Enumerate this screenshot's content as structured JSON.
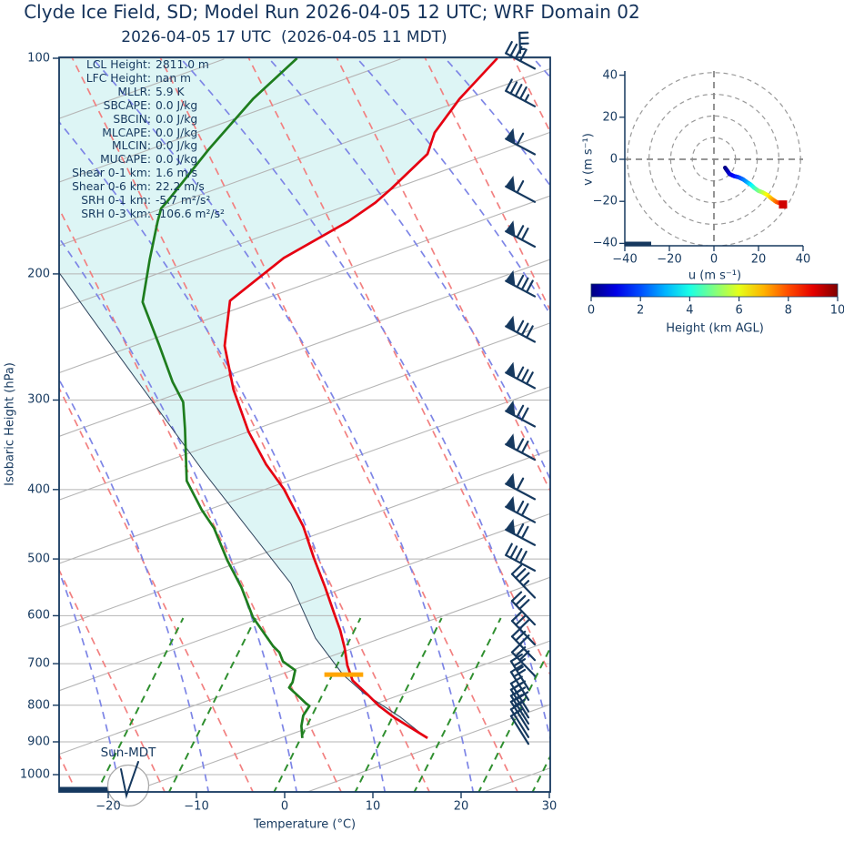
{
  "title": "Clyde Ice Field, SD; Model Run 2026-04-05 12 UTC; WRF Domain 02",
  "subtitle": "2026-04-05 17 UTC  (2026-04-05 11 MDT)",
  "colors": {
    "navy": "#16395f",
    "temperature_line": "#e60011",
    "dewpoint_line": "#1e7d1e",
    "parcel_line": "#30455e",
    "cin_shade": "#ddf5f5",
    "isotherm": "#b5b5b5",
    "dry_adiabat": "#f28080",
    "moist_adiabat": "#7d85e6",
    "mixing_ratio": "#2f8f2f",
    "lcl_marker": "#ffa500",
    "hodo_ring": "#999999",
    "hodo_cross": "#888888",
    "endpoint_marker": "#d00000"
  },
  "stats": {
    "rows": [
      {
        "label": "LCL Height:",
        "value": "2811.0 m"
      },
      {
        "label": "LFC Height:",
        "value": "nan m"
      },
      {
        "label": "MLLR:",
        "value": "5.9 K"
      },
      {
        "label": "SBCAPE:",
        "value": "0.0 J/kg"
      },
      {
        "label": "SBCIN:",
        "value": "0.0 J/kg"
      },
      {
        "label": "MLCAPE:",
        "value": "0.0 J/kg"
      },
      {
        "label": "MLCIN:",
        "value": "0.0 J/kg"
      },
      {
        "label": "MUCAPE:",
        "value": "0.0 J/kg"
      },
      {
        "label": "Shear 0-1 km:",
        "value": "1.6 m/s"
      },
      {
        "label": "Shear 0-6 km:",
        "value": "22.2 m/s"
      },
      {
        "label": "SRH 0-1 km:",
        "value": "-5.7 m²/s²"
      },
      {
        "label": "SRH 0-3 km:",
        "value": "-106.6 m²/s²"
      }
    ]
  },
  "skewt": {
    "ylabel": "Isobaric Height (hPa)",
    "xlabel": "Temperature (°C)",
    "sun_label": "Sun-MDT",
    "pressure_ticks": [
      100,
      200,
      300,
      400,
      500,
      600,
      700,
      800,
      900,
      1000
    ],
    "temp_ticks": [
      "−20",
      "−10",
      "0",
      "10",
      "20",
      "30"
    ]
  },
  "hodograph": {
    "xlabel": "u (m s⁻¹)",
    "ylabel": "v (m s⁻¹)",
    "x_ticks": [
      "−40",
      "−20",
      "0",
      "20",
      "40"
    ],
    "y_ticks": [
      "40",
      "20",
      "0",
      "−20",
      "−40"
    ],
    "ring_radii": [
      10,
      20,
      30,
      40
    ]
  },
  "colorbar": {
    "label": "Height (km AGL)",
    "ticks": [
      0,
      2,
      4,
      6,
      8,
      10
    ],
    "min": 0,
    "max": 10
  },
  "chart_data": {
    "type": "skewt-sounding",
    "pressure_axis_hPa": [
      100,
      1050
    ],
    "temperature_axis_C": [
      -25.5,
      30
    ],
    "temperature_C_by_hPa": [
      [
        100,
        24.1
      ],
      [
        114,
        19.8
      ],
      [
        127,
        17.0
      ],
      [
        136,
        16.2
      ],
      [
        152,
        12.1
      ],
      [
        159,
        10.3
      ],
      [
        169,
        7.2
      ],
      [
        190,
        -0.1
      ],
      [
        218,
        -6.2
      ],
      [
        252,
        -6.8
      ],
      [
        290,
        -5.8
      ],
      [
        332,
        -4.1
      ],
      [
        369,
        -2.1
      ],
      [
        399,
        -0.1
      ],
      [
        450,
        2.1
      ],
      [
        498,
        3.3
      ],
      [
        548,
        4.6
      ],
      [
        595,
        5.6
      ],
      [
        629,
        6.3
      ],
      [
        666,
        6.8
      ],
      [
        704,
        7.1
      ],
      [
        739,
        7.7
      ],
      [
        771,
        9.3
      ],
      [
        802,
        10.7
      ],
      [
        832,
        12.4
      ],
      [
        857,
        14.1
      ],
      [
        889,
        16.2
      ]
    ],
    "dewpoint_C_by_hPa": [
      [
        100,
        1.4
      ],
      [
        114,
        -3.6
      ],
      [
        134,
        -8.6
      ],
      [
        159,
        -13.4
      ],
      [
        162,
        -14.0
      ],
      [
        169,
        -14.4
      ],
      [
        191,
        -15.3
      ],
      [
        219,
        -16.1
      ],
      [
        252,
        -14.2
      ],
      [
        283,
        -12.7
      ],
      [
        294,
        -12.0
      ],
      [
        302,
        -11.5
      ],
      [
        329,
        -11.3
      ],
      [
        389,
        -11.1
      ],
      [
        427,
        -9.4
      ],
      [
        453,
        -8.0
      ],
      [
        502,
        -6.5
      ],
      [
        548,
        -4.9
      ],
      [
        603,
        -3.6
      ],
      [
        662,
        -1.3
      ],
      [
        675,
        -0.6
      ],
      [
        695,
        -0.2
      ],
      [
        715,
        1.2
      ],
      [
        743,
        0.9
      ],
      [
        756,
        0.5
      ],
      [
        782,
        1.8
      ],
      [
        795,
        2.4
      ],
      [
        802,
        2.8
      ],
      [
        827,
        2.1
      ],
      [
        855,
        1.9
      ],
      [
        889,
        2.0
      ]
    ],
    "parcel_C_by_hPa": [
      [
        199,
        -25.6
      ],
      [
        252,
        -19.6
      ],
      [
        379,
        -9.1
      ],
      [
        541,
        0.7
      ],
      [
        645,
        3.5
      ],
      [
        725,
        6.6
      ],
      [
        770,
        9.0
      ],
      [
        831,
        13.1
      ],
      [
        887,
        16.0
      ]
    ],
    "lcl": {
      "pressure_hPa": 725,
      "t_display_C": 6.7,
      "half_width_C": 2.2,
      "height_m": 2811.0
    },
    "wind_barbs": [
      {
        "p": 101,
        "pen": 0,
        "full": 4,
        "half": 0
      },
      {
        "p": 114,
        "pen": 0,
        "full": 4,
        "half": 1
      },
      {
        "p": 133,
        "pen": 1,
        "full": 1,
        "half": 0
      },
      {
        "p": 155,
        "pen": 1,
        "full": 1,
        "half": 0
      },
      {
        "p": 179,
        "pen": 1,
        "full": 2,
        "half": 0
      },
      {
        "p": 210,
        "pen": 1,
        "full": 3,
        "half": 0
      },
      {
        "p": 243,
        "pen": 1,
        "full": 3,
        "half": 0
      },
      {
        "p": 282,
        "pen": 1,
        "full": 3,
        "half": 0
      },
      {
        "p": 319,
        "pen": 1,
        "full": 2,
        "half": 0
      },
      {
        "p": 355,
        "pen": 1,
        "full": 2,
        "half": 0
      },
      {
        "p": 403,
        "pen": 1,
        "full": 1,
        "half": 0
      },
      {
        "p": 434,
        "pen": 1,
        "full": 2,
        "half": 0
      },
      {
        "p": 467,
        "pen": 1,
        "full": 2,
        "half": 0
      },
      {
        "p": 507,
        "pen": 0,
        "full": 4,
        "half": 0
      },
      {
        "p": 553,
        "pen": 0,
        "full": 3,
        "half": 1
      },
      {
        "p": 603,
        "pen": 0,
        "full": 3,
        "half": 0
      },
      {
        "p": 643,
        "pen": 0,
        "full": 3,
        "half": 0
      },
      {
        "p": 676,
        "pen": 0,
        "full": 3,
        "half": 0
      },
      {
        "p": 711,
        "pen": 0,
        "full": 3,
        "half": 0
      },
      {
        "p": 742,
        "pen": 0,
        "full": 2,
        "half": 1
      },
      {
        "p": 768,
        "pen": 0,
        "full": 2,
        "half": 0
      },
      {
        "p": 797,
        "pen": 0,
        "full": 2,
        "half": 0
      },
      {
        "p": 813,
        "pen": 0,
        "full": 3,
        "half": 0
      },
      {
        "p": 829,
        "pen": 0,
        "full": 2,
        "half": 0
      },
      {
        "p": 845,
        "pen": 0,
        "full": 2,
        "half": 0
      },
      {
        "p": 866,
        "pen": 0,
        "full": 1,
        "half": 1
      },
      {
        "p": 885,
        "pen": 0,
        "full": 1,
        "half": 0
      }
    ],
    "background": {
      "isotherm_bottom_C": [
        -258,
        -238,
        -218,
        -198,
        -178,
        -158,
        -138,
        -118,
        -98,
        -78,
        -58,
        -38,
        -18,
        2,
        22
      ],
      "dry_adiabat_bottom_C": [
        -23.5,
        -13.5,
        -3.5,
        6.5,
        16.5,
        26.5,
        36.5,
        46.5,
        56.5,
        66.5
      ],
      "moist_adiabat_bottom_C": [
        -28.6,
        -18.6,
        -8.6,
        1.4,
        11.4,
        21.4,
        31.4,
        41.4,
        51.4,
        61.4,
        71.4
      ],
      "mixing_ratio_bottom_C": [
        -21.4,
        -13.2,
        -1.3,
        7.9,
        14.6,
        21.9,
        28.0,
        33.7
      ]
    },
    "hodograph_trace_h_u_v": [
      [
        0.0,
        5,
        -4
      ],
      [
        0.4,
        6,
        -5.5
      ],
      [
        0.8,
        7,
        -7
      ],
      [
        1.3,
        9,
        -8
      ],
      [
        1.8,
        11,
        -8.5
      ],
      [
        2.3,
        13,
        -9.5
      ],
      [
        2.9,
        15,
        -11
      ],
      [
        3.5,
        16.5,
        -12
      ],
      [
        4.2,
        18,
        -13.5
      ],
      [
        4.9,
        20,
        -15
      ],
      [
        5.6,
        22,
        -15.8
      ],
      [
        6.3,
        24,
        -17
      ],
      [
        7.0,
        26,
        -18.8
      ],
      [
        7.7,
        28,
        -20.3
      ],
      [
        8.4,
        30,
        -21
      ],
      [
        9.0,
        31,
        -21.5
      ]
    ]
  }
}
